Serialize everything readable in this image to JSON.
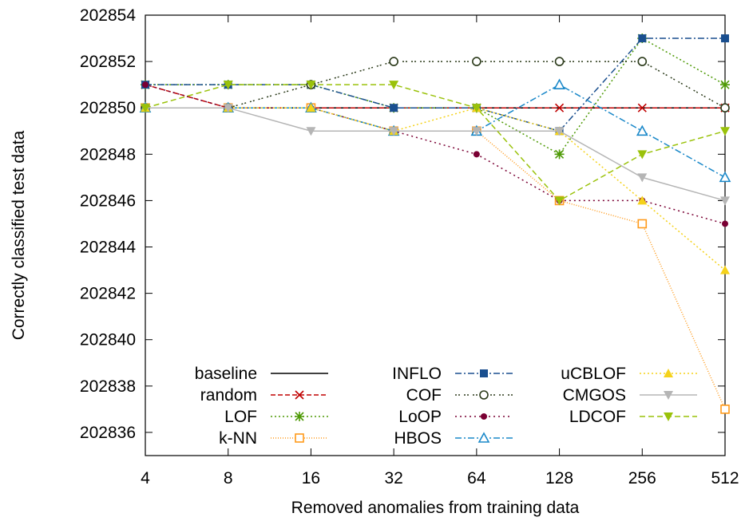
{
  "chart_data": {
    "type": "line",
    "xlabel": "Removed anomalies from training data",
    "ylabel": "Correctly classified test data",
    "x": [
      "4",
      "8",
      "16",
      "32",
      "64",
      "128",
      "256",
      "512"
    ],
    "ylim": [
      202835,
      202854
    ],
    "yticks": [
      202836,
      202838,
      202840,
      202842,
      202844,
      202846,
      202848,
      202850,
      202852,
      202854
    ],
    "grid": false,
    "legend_position": "bottom-left",
    "series": [
      {
        "name": "baseline",
        "color": "#000000",
        "dash": "",
        "marker": "none",
        "values": [
          202850,
          202850,
          202850,
          202850,
          202850,
          202850,
          202850,
          202850
        ]
      },
      {
        "name": "random",
        "color": "#c00000",
        "dash": "6,3",
        "marker": "cross",
        "values": [
          202851,
          202850,
          202850,
          202850,
          202850,
          202850,
          202850,
          202850
        ]
      },
      {
        "name": "LOF",
        "color": "#4e9a06",
        "dash": "2,3",
        "marker": "star",
        "values": [
          202851,
          202851,
          202851,
          202850,
          202850,
          202848,
          202853,
          202851
        ]
      },
      {
        "name": "k-NN",
        "color": "#ff9a1a",
        "dash": "1,2",
        "marker": "square-open",
        "values": [
          202850,
          202850,
          202850,
          202849,
          202849,
          202846,
          202845,
          202837
        ]
      },
      {
        "name": "INFLO",
        "color": "#1a4f8f",
        "dash": "8,3,2,3",
        "marker": "square-filled",
        "values": [
          202851,
          202851,
          202851,
          202850,
          202850,
          202849,
          202853,
          202853
        ]
      },
      {
        "name": "COF",
        "color": "#2b3a1a",
        "dash": "2,2,2,5",
        "marker": "circle-open",
        "values": [
          202850,
          202850,
          202851,
          202852,
          202852,
          202852,
          202852,
          202850
        ]
      },
      {
        "name": "LoOP",
        "color": "#7a0033",
        "dash": "2,4",
        "marker": "circle-filled",
        "values": [
          202851,
          202850,
          202850,
          202849,
          202848,
          202846,
          202846,
          202845
        ]
      },
      {
        "name": "HBOS",
        "color": "#1a88c9",
        "dash": "8,3,2,3",
        "marker": "triangle-open",
        "values": [
          202850,
          202850,
          202850,
          202849,
          202849,
          202851,
          202849,
          202847
        ]
      },
      {
        "name": "uCBLOF",
        "color": "#f5d21a",
        "dash": "2,3",
        "marker": "triangle-filled",
        "values": [
          202850,
          202850,
          202850,
          202849,
          202850,
          202849,
          202846,
          202843
        ]
      },
      {
        "name": "CMGOS",
        "color": "#b5b5b5",
        "dash": "",
        "marker": "tri-down",
        "values": [
          202850,
          202850,
          202849,
          202849,
          202849,
          202849,
          202847,
          202846
        ]
      },
      {
        "name": "LDCOF",
        "color": "#9ac20a",
        "dash": "7,4",
        "marker": "tri-down",
        "values": [
          202850,
          202851,
          202851,
          202851,
          202850,
          202846,
          202848,
          202849
        ]
      }
    ]
  }
}
